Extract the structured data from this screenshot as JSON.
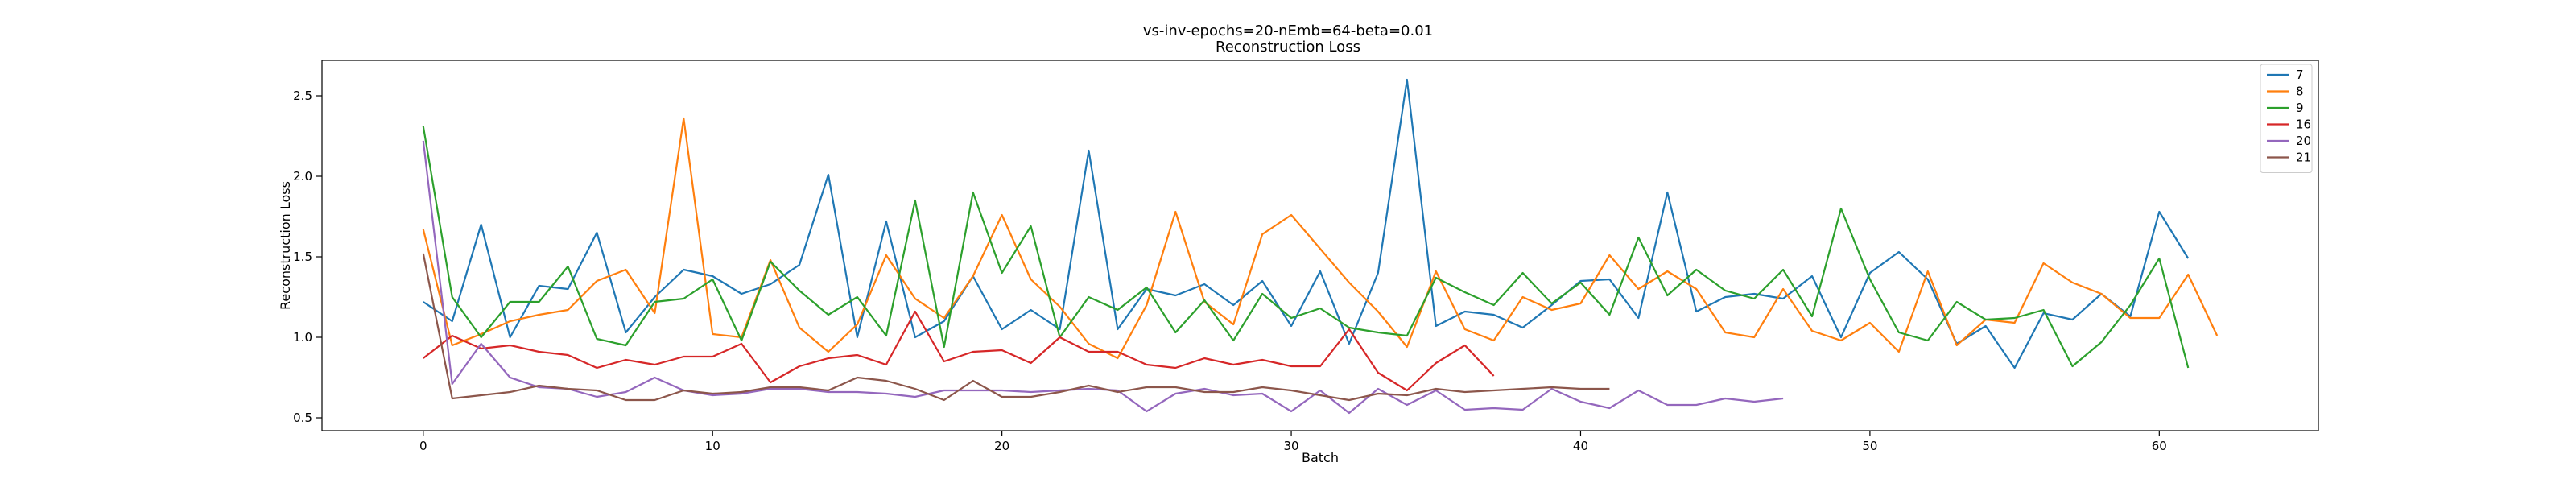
{
  "chart_data": {
    "type": "line",
    "title": "vs-inv-epochs=20-nEmb=64-beta=0.01",
    "subtitle": "Reconstruction Loss",
    "xlabel": "Batch",
    "ylabel": "Reconstruction Loss",
    "xlim": [
      -3.5,
      65.5
    ],
    "ylim": [
      0.42,
      2.72
    ],
    "xticks": [
      0,
      10,
      20,
      30,
      40,
      50,
      60
    ],
    "yticks": [
      0.5,
      1.0,
      1.5,
      2.0,
      2.5
    ],
    "ytick_labels": [
      "0.5",
      "1.0",
      "1.5",
      "2.0",
      "2.5"
    ],
    "grid": false,
    "legend_position": "top-right",
    "series": [
      {
        "name": "7",
        "color": "#1f77b4",
        "values": [
          1.22,
          1.1,
          1.7,
          1.0,
          1.32,
          1.3,
          1.65,
          1.03,
          1.25,
          1.42,
          1.38,
          1.27,
          1.33,
          1.45,
          2.01,
          1.0,
          1.72,
          1.0,
          1.1,
          1.38,
          1.05,
          1.17,
          1.05,
          2.16,
          1.05,
          1.3,
          1.26,
          1.33,
          1.2,
          1.35,
          1.07,
          1.41,
          0.96,
          1.4,
          2.6,
          1.07,
          1.16,
          1.14,
          1.06,
          1.2,
          1.35,
          1.36,
          1.12,
          1.9,
          1.16,
          1.25,
          1.27,
          1.24,
          1.38,
          1.0,
          1.4,
          1.53,
          1.36,
          0.96,
          1.07,
          0.81,
          1.15,
          1.11,
          1.27,
          1.13,
          1.78,
          1.49
        ]
      },
      {
        "name": "8",
        "color": "#ff7f0e",
        "values": [
          1.67,
          0.95,
          1.02,
          1.1,
          1.14,
          1.17,
          1.35,
          1.42,
          1.15,
          2.36,
          1.02,
          1.0,
          1.48,
          1.06,
          0.91,
          1.08,
          1.51,
          1.24,
          1.12,
          1.38,
          1.76,
          1.36,
          1.19,
          0.96,
          0.87,
          1.2,
          1.78,
          1.22,
          1.08,
          1.64,
          1.76,
          1.55,
          1.34,
          1.16,
          0.94,
          1.41,
          1.05,
          0.98,
          1.25,
          1.17,
          1.21,
          1.51,
          1.3,
          1.41,
          1.3,
          1.03,
          1.0,
          1.3,
          1.04,
          0.98,
          1.09,
          0.91,
          1.41,
          0.95,
          1.11,
          1.09,
          1.46,
          1.34,
          1.27,
          1.12,
          1.12,
          1.39,
          1.01
        ]
      },
      {
        "name": "9",
        "color": "#2ca02c",
        "values": [
          2.31,
          1.25,
          1.0,
          1.22,
          1.22,
          1.44,
          0.99,
          0.95,
          1.22,
          1.24,
          1.36,
          0.98,
          1.47,
          1.29,
          1.14,
          1.25,
          1.01,
          1.85,
          0.94,
          1.9,
          1.4,
          1.69,
          1.0,
          1.25,
          1.17,
          1.31,
          1.03,
          1.23,
          0.98,
          1.27,
          1.12,
          1.18,
          1.06,
          1.03,
          1.01,
          1.37,
          1.28,
          1.2,
          1.4,
          1.21,
          1.34,
          1.14,
          1.62,
          1.26,
          1.42,
          1.29,
          1.24,
          1.42,
          1.13,
          1.8,
          1.36,
          1.03,
          0.98,
          1.22,
          1.11,
          1.12,
          1.17,
          0.82,
          0.97,
          1.2,
          1.49,
          0.81
        ]
      },
      {
        "name": "16",
        "color": "#d62728",
        "values": [
          0.87,
          1.01,
          0.93,
          0.95,
          0.91,
          0.89,
          0.81,
          0.86,
          0.83,
          0.88,
          0.88,
          0.96,
          0.72,
          0.82,
          0.87,
          0.89,
          0.83,
          1.16,
          0.85,
          0.91,
          0.92,
          0.84,
          1.0,
          0.91,
          0.91,
          0.83,
          0.81,
          0.87,
          0.83,
          0.86,
          0.82,
          0.82,
          1.05,
          0.78,
          0.67,
          0.84,
          0.95,
          0.76
        ]
      },
      {
        "name": "20",
        "color": "#9467bd",
        "values": [
          2.22,
          0.71,
          0.96,
          0.75,
          0.69,
          0.68,
          0.63,
          0.66,
          0.75,
          0.67,
          0.64,
          0.65,
          0.68,
          0.68,
          0.66,
          0.66,
          0.65,
          0.63,
          0.67,
          0.67,
          0.67,
          0.66,
          0.67,
          0.68,
          0.67,
          0.54,
          0.65,
          0.68,
          0.64,
          0.65,
          0.54,
          0.67,
          0.53,
          0.68,
          0.58,
          0.67,
          0.55,
          0.56,
          0.55,
          0.68,
          0.6,
          0.56,
          0.67,
          0.58,
          0.58,
          0.62,
          0.6,
          0.62
        ]
      },
      {
        "name": "21",
        "color": "#8c564b",
        "values": [
          1.52,
          0.62,
          0.64,
          0.66,
          0.7,
          0.68,
          0.67,
          0.61,
          0.61,
          0.67,
          0.65,
          0.66,
          0.69,
          0.69,
          0.67,
          0.75,
          0.73,
          0.68,
          0.61,
          0.73,
          0.63,
          0.63,
          0.66,
          0.7,
          0.66,
          0.69,
          0.69,
          0.66,
          0.66,
          0.69,
          0.67,
          0.64,
          0.61,
          0.65,
          0.64,
          0.68,
          0.66,
          0.67,
          0.68,
          0.69,
          0.68,
          0.68
        ]
      }
    ]
  }
}
